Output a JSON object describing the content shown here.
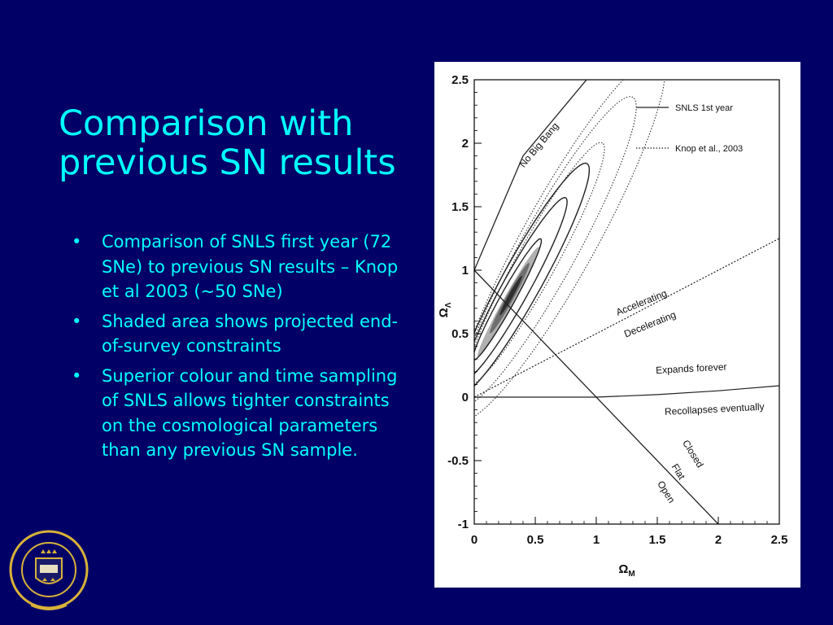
{
  "slide": {
    "title_lines": [
      "Comparison with",
      "previous SN results"
    ],
    "bullets": [
      "Comparison of SNLS first year (72 SNe) to previous SN results – Knop et al 2003 (~50 SNe)",
      "Shaded area shows projected end-of-survey constraints",
      "Superior colour and time sampling of SNLS allows tighter constraints on the cosmological parameters than any previous SN sample."
    ],
    "bullet_glyph": "•",
    "colors": {
      "background": "#000066",
      "text": "#00ffff",
      "figure_bg": "#ffffff"
    }
  },
  "chart_data": {
    "type": "line",
    "xlabel": "ΩM",
    "ylabel": "ΩΛ",
    "xlim": [
      0,
      2.5
    ],
    "ylim": [
      -1,
      2.5
    ],
    "x_ticks": [
      "0",
      "0.5",
      "1",
      "1.5",
      "2",
      "2.5"
    ],
    "y_ticks": [
      "-1",
      "-0.5",
      "0",
      "0.5",
      "1",
      "1.5",
      "2",
      "2.5"
    ],
    "legend_placement": "top-right",
    "series": [
      {
        "name": "SNLS 1st year",
        "style": "solid"
      },
      {
        "name": "Knop et al., 2003",
        "style": "dotted"
      }
    ],
    "annotations": [
      "No Big Bang",
      "Accelerating",
      "Decelerating",
      "Expands forever",
      "Recollapses eventually",
      "Closed",
      "Flat",
      "Open"
    ],
    "lines": {
      "no_big_bang": [
        [
          0.0,
          1.0
        ],
        [
          0.4,
          1.9
        ],
        [
          0.92,
          2.5
        ]
      ],
      "accel_decel": [
        [
          0.0,
          0.0
        ],
        [
          2.5,
          1.25
        ]
      ],
      "flat": [
        [
          0.0,
          1.0
        ],
        [
          2.0,
          -1.0
        ]
      ],
      "expands_recollapse": [
        [
          0.0,
          0.0
        ],
        [
          1.0,
          0.0
        ],
        [
          1.5,
          0.02
        ],
        [
          2.0,
          0.05
        ],
        [
          2.5,
          0.09
        ]
      ]
    },
    "contours": {
      "snls": [
        {
          "cx": 0.27,
          "cy": 0.77,
          "a": 0.55,
          "b": 0.06
        },
        {
          "cx": 0.34,
          "cy": 0.86,
          "a": 0.82,
          "b": 0.11
        },
        {
          "cx": 0.4,
          "cy": 0.93,
          "a": 1.05,
          "b": 0.16
        }
      ],
      "knop": [
        {
          "cx": 0.5,
          "cy": 1.05,
          "a": 1.1,
          "b": 0.16
        },
        {
          "cx": 0.6,
          "cy": 1.15,
          "a": 1.4,
          "b": 0.23
        },
        {
          "cx": 0.7,
          "cy": 1.25,
          "a": 1.65,
          "b": 0.3
        }
      ],
      "shaded": [
        {
          "cx": 0.28,
          "cy": 0.75,
          "a": 0.5,
          "b": 0.045,
          "shade": "#b0b0b0"
        },
        {
          "cx": 0.29,
          "cy": 0.78,
          "a": 0.32,
          "b": 0.03,
          "shade": "#6e6e6e"
        },
        {
          "cx": 0.3,
          "cy": 0.8,
          "a": 0.18,
          "b": 0.018,
          "shade": "#2f2f2f"
        }
      ],
      "angle_deg": 60
    }
  }
}
